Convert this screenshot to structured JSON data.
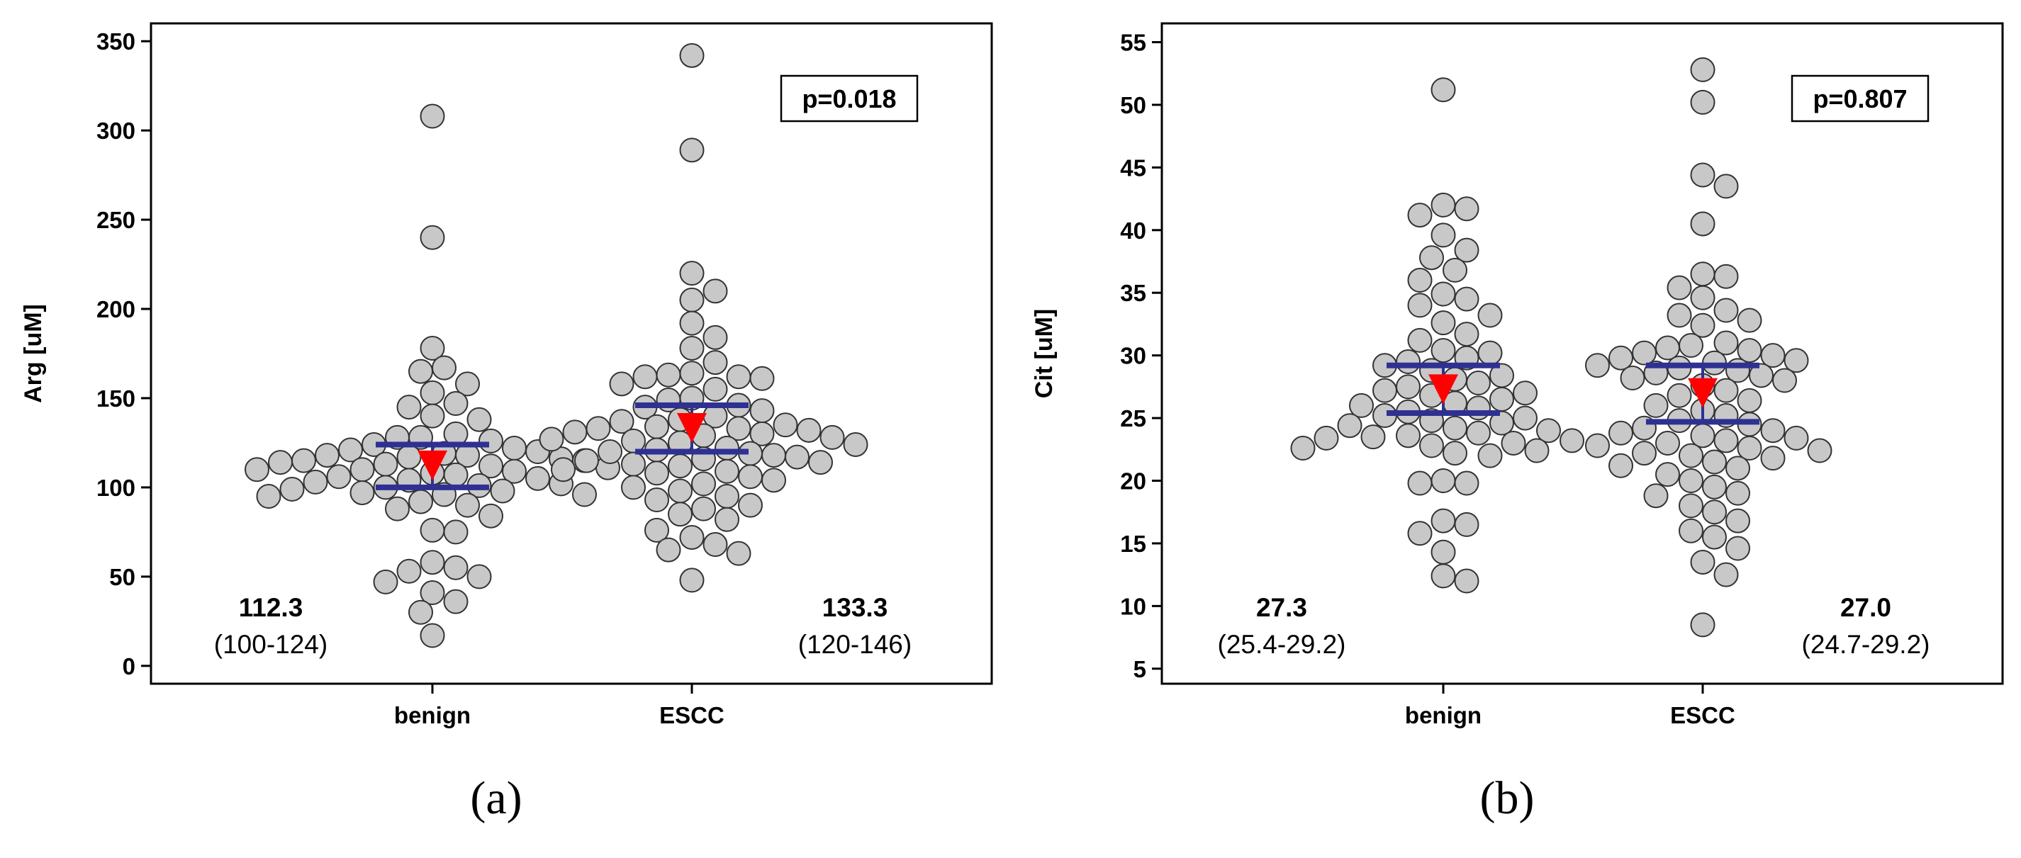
{
  "chart_data": [
    {
      "type": "scatter",
      "panel_label": "(a)",
      "ylabel": "Arg  [uM]",
      "ylim": [
        -10,
        360
      ],
      "yticks": [
        "0",
        "50",
        "100",
        "150",
        "200",
        "250",
        "300",
        "350"
      ],
      "ytick_values": [
        0,
        50,
        100,
        150,
        200,
        250,
        300,
        350
      ],
      "categories": [
        "benign",
        "ESCC"
      ],
      "p_value": "p=0.018",
      "colors": {
        "point_fill": "#c8c8c8",
        "point_stroke": "#333333",
        "ci_line": "#2e3192",
        "median_marker": "#ff0000"
      },
      "series": [
        {
          "name": "benign",
          "median": 112.3,
          "ci": [
            100,
            124
          ],
          "median_text": "112.3",
          "ci_text": "(100-124)",
          "values": [
            308,
            240,
            178,
            167,
            165,
            158,
            153,
            147,
            145,
            140,
            138,
            130,
            128,
            128,
            126,
            124,
            122,
            121,
            120,
            119,
            118,
            118,
            117,
            116,
            115,
            115,
            114,
            113,
            112,
            111,
            110,
            110,
            109,
            108,
            107,
            106,
            105,
            104,
            103,
            102,
            101,
            100,
            99,
            98,
            97,
            96,
            96,
            95,
            92,
            90,
            88,
            84,
            76,
            75,
            58,
            55,
            53,
            50,
            47,
            41,
            36,
            30,
            17
          ]
        },
        {
          "name": "ESCC",
          "median": 133.3,
          "ci": [
            120,
            146
          ],
          "median_text": "133.3",
          "ci_text": "(120-146)",
          "values": [
            342,
            289,
            220,
            210,
            205,
            192,
            184,
            178,
            170,
            164,
            163,
            162,
            162,
            161,
            158,
            155,
            150,
            149,
            146,
            145,
            143,
            140,
            138,
            137,
            135,
            134,
            133,
            133,
            132,
            131,
            130,
            129,
            128,
            127,
            126,
            125,
            124,
            122,
            121,
            120,
            119,
            118,
            117,
            116,
            115,
            114,
            113,
            112,
            110,
            109,
            108,
            106,
            104,
            102,
            100,
            98,
            95,
            93,
            90,
            88,
            85,
            82,
            76,
            72,
            68,
            65,
            63,
            48
          ]
        }
      ]
    },
    {
      "type": "scatter",
      "panel_label": "(b)",
      "ylabel": "Cit  [uM]",
      "ylim": [
        3.8,
        56.5
      ],
      "yticks": [
        "5",
        "10",
        "15",
        "20",
        "25",
        "30",
        "35",
        "40",
        "45",
        "50",
        "55"
      ],
      "ytick_values": [
        5,
        10,
        15,
        20,
        25,
        30,
        35,
        40,
        45,
        50,
        55
      ],
      "categories": [
        "benign",
        "ESCC"
      ],
      "p_value": "p=0.807",
      "colors": {
        "point_fill": "#c8c8c8",
        "point_stroke": "#333333",
        "ci_line": "#2e3192",
        "median_marker": "#ff0000"
      },
      "series": [
        {
          "name": "benign",
          "median": 27.3,
          "ci": [
            25.4,
            29.2
          ],
          "median_text": "27.3",
          "ci_text": "(25.4-29.2)",
          "values": [
            51.2,
            42,
            41.7,
            41.2,
            39.6,
            38.4,
            37.8,
            36.8,
            36,
            34.9,
            34.5,
            34,
            33.2,
            32.6,
            31.7,
            31.2,
            30.4,
            30.2,
            29.8,
            29.5,
            29.2,
            28.8,
            28.4,
            28.1,
            27.8,
            27.5,
            27.2,
            27,
            26.8,
            26.5,
            26.2,
            26,
            25.8,
            25.5,
            25.2,
            25,
            24.8,
            24.6,
            24.4,
            24.2,
            24,
            23.8,
            23.6,
            23.5,
            23.4,
            23.2,
            23,
            22.8,
            22.6,
            22.4,
            22.2,
            22,
            20,
            19.8,
            19.8,
            16.8,
            16.5,
            15.8,
            14.3,
            12.4,
            12
          ]
        },
        {
          "name": "ESCC",
          "median": 27.0,
          "ci": [
            24.7,
            29.2
          ],
          "median_text": "27.0",
          "ci_text": "(24.7-29.2)",
          "values": [
            52.8,
            50.2,
            44.4,
            43.5,
            40.5,
            36.5,
            36.3,
            35.4,
            34.6,
            33.6,
            33.2,
            32.8,
            32.4,
            31,
            30.8,
            30.6,
            30.4,
            30.2,
            30,
            29.8,
            29.6,
            29.4,
            29.2,
            29,
            28.8,
            28.6,
            28.4,
            28.2,
            28,
            27.6,
            27.2,
            26.8,
            26.4,
            26,
            25.6,
            25.2,
            24.8,
            24.5,
            24.2,
            24,
            23.8,
            23.6,
            23.4,
            23.2,
            23,
            22.8,
            22.6,
            22.4,
            22.2,
            22,
            21.8,
            21.5,
            21.2,
            21,
            20.5,
            20,
            19.5,
            19,
            18.8,
            18,
            17.5,
            16.8,
            16,
            15.5,
            14.6,
            13.5,
            12.5,
            8.5
          ]
        }
      ]
    }
  ]
}
